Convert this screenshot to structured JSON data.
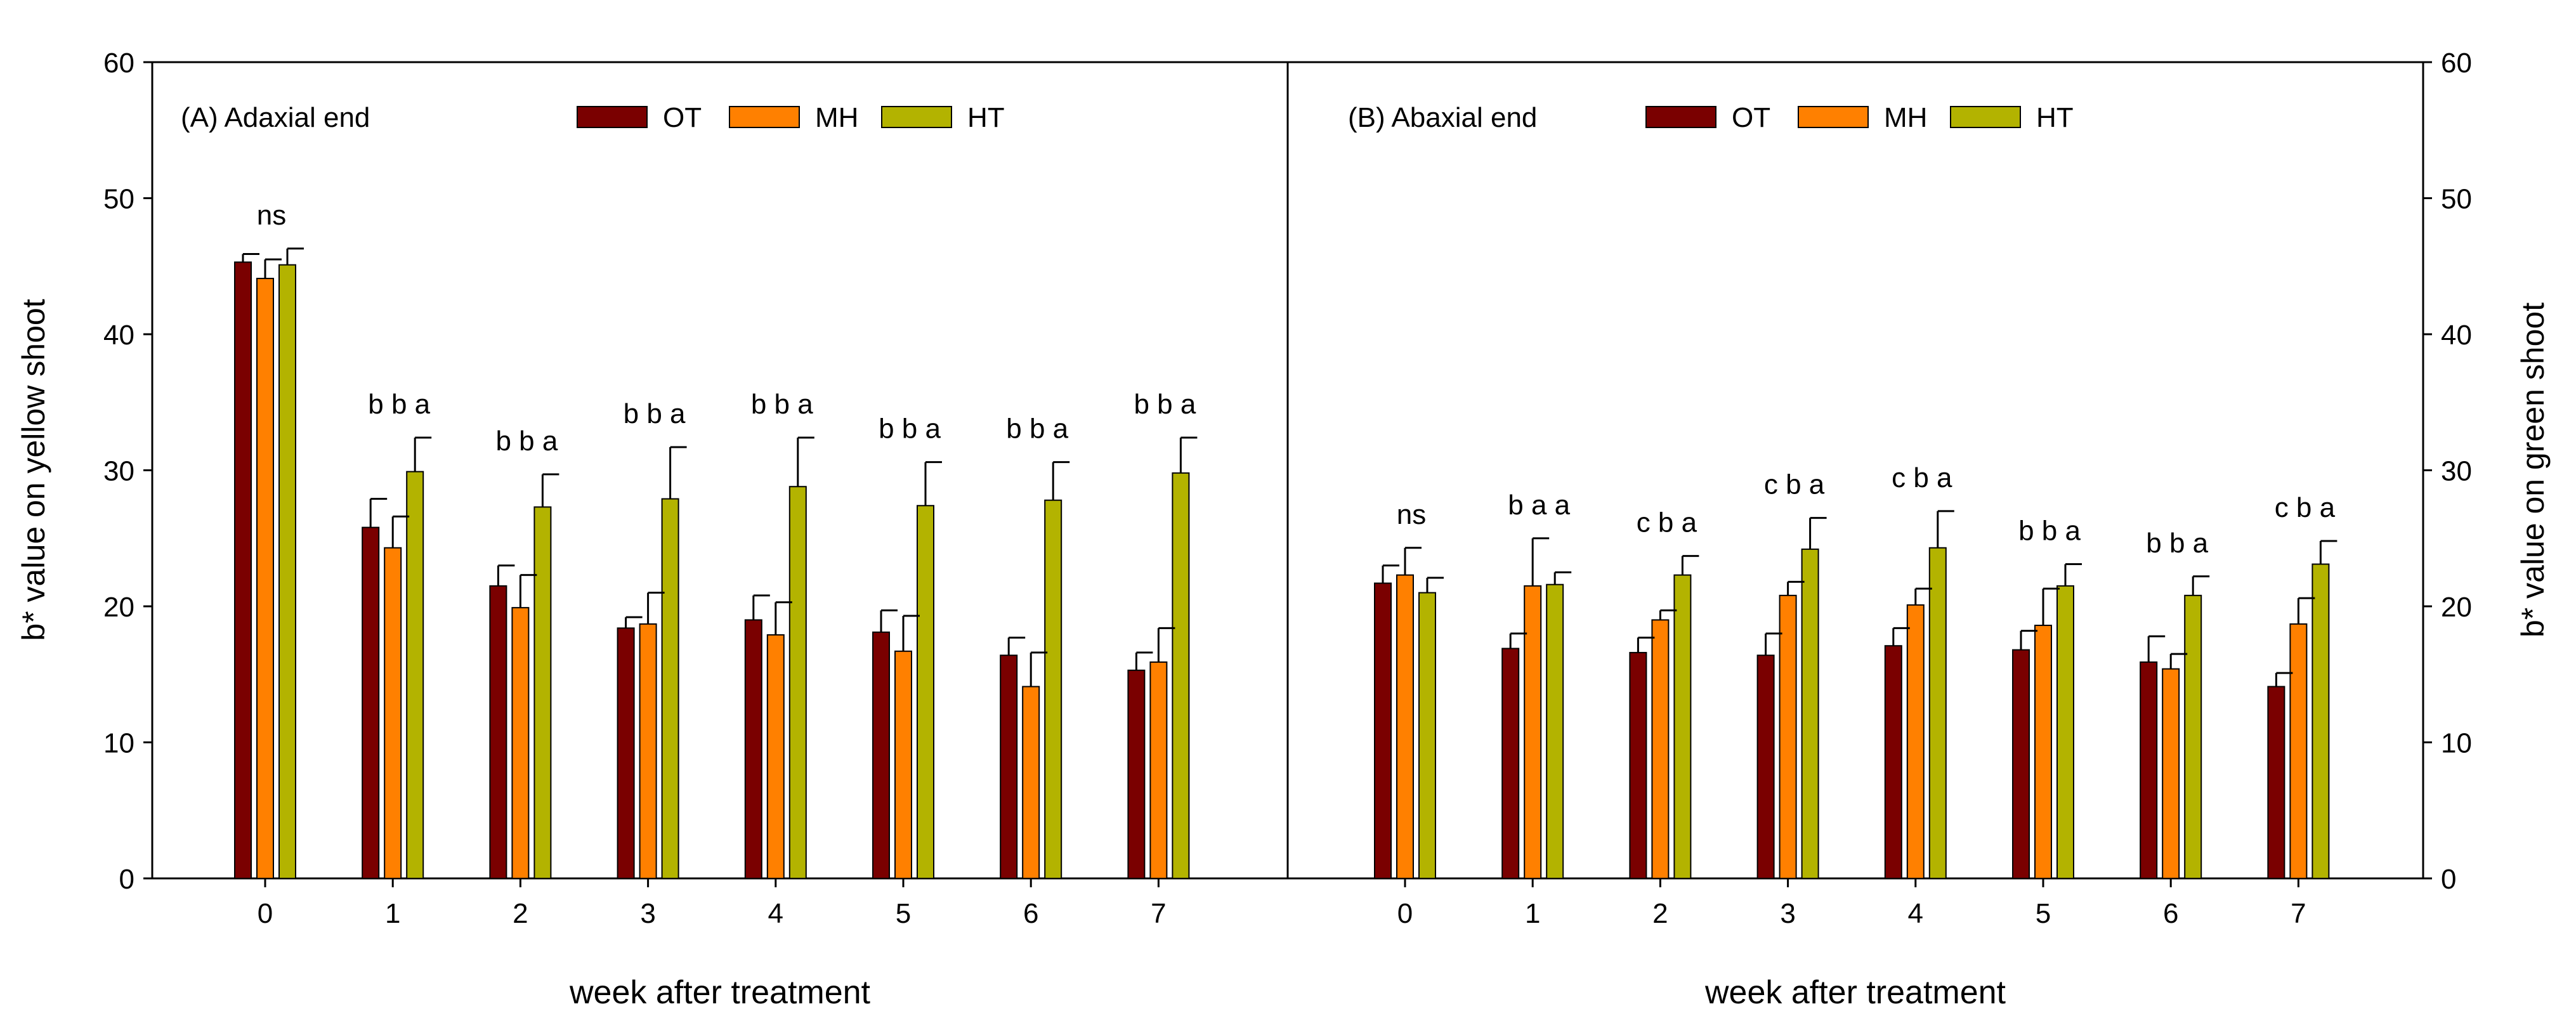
{
  "colors": {
    "OT": "#7a0000",
    "MH": "#ff8000",
    "HT": "#b3b300",
    "axis": "#000000"
  },
  "chart_data": [
    {
      "type": "bar",
      "panel": "left",
      "title": "(A) Adaxial end",
      "xlabel": "week after treatment",
      "ylabel": "b* value on yellow shoot",
      "ylim": [
        0,
        60
      ],
      "yticks": [
        0,
        10,
        20,
        30,
        40,
        50,
        60
      ],
      "categories": [
        "0",
        "1",
        "2",
        "3",
        "4",
        "5",
        "6",
        "7"
      ],
      "series": [
        {
          "name": "OT",
          "values": [
            45.3,
            25.8,
            21.5,
            18.4,
            19.0,
            18.1,
            16.4,
            15.3
          ],
          "errors": [
            0.6,
            2.1,
            1.5,
            0.8,
            1.8,
            1.6,
            1.3,
            1.3
          ]
        },
        {
          "name": "MH",
          "values": [
            44.1,
            24.3,
            19.9,
            18.7,
            17.9,
            16.7,
            14.1,
            15.9
          ],
          "errors": [
            1.4,
            2.3,
            2.4,
            2.3,
            2.4,
            2.6,
            2.5,
            2.5
          ]
        },
        {
          "name": "HT",
          "values": [
            45.1,
            29.9,
            27.3,
            27.9,
            28.8,
            27.4,
            27.8,
            29.8
          ],
          "errors": [
            1.2,
            2.5,
            2.4,
            3.8,
            3.6,
            3.2,
            2.8,
            2.6
          ]
        }
      ],
      "annotations": [
        "ns",
        "b b a",
        "b b a",
        "b b a",
        "b b a",
        "b b a",
        "b b a",
        "b b a"
      ]
    },
    {
      "type": "bar",
      "panel": "right",
      "title": "(B) Abaxial end",
      "xlabel": "week after treatment",
      "ylabel": "b* value on green shoot",
      "ylim": [
        0,
        60
      ],
      "yticks": [
        0,
        10,
        20,
        30,
        40,
        50,
        60
      ],
      "categories": [
        "0",
        "1",
        "2",
        "3",
        "4",
        "5",
        "6",
        "7"
      ],
      "series": [
        {
          "name": "OT",
          "values": [
            21.7,
            16.9,
            16.6,
            16.4,
            17.1,
            16.8,
            15.9,
            14.1
          ],
          "errors": [
            1.3,
            1.1,
            1.1,
            1.6,
            1.3,
            1.4,
            1.9,
            1.0
          ]
        },
        {
          "name": "MH",
          "values": [
            22.3,
            21.5,
            19.0,
            20.8,
            20.1,
            18.6,
            15.4,
            18.7
          ],
          "errors": [
            2.0,
            3.5,
            0.7,
            1.0,
            1.2,
            2.7,
            1.1,
            1.9
          ]
        },
        {
          "name": "HT",
          "values": [
            21.0,
            21.6,
            22.3,
            24.2,
            24.3,
            21.5,
            20.8,
            23.1
          ],
          "errors": [
            1.1,
            0.9,
            1.4,
            2.3,
            2.7,
            1.6,
            1.4,
            1.7
          ]
        }
      ],
      "annotations": [
        "ns",
        "b a a",
        "c b a",
        "c b a",
        "c b a",
        "b b a",
        "b b a",
        "c b a"
      ]
    }
  ]
}
